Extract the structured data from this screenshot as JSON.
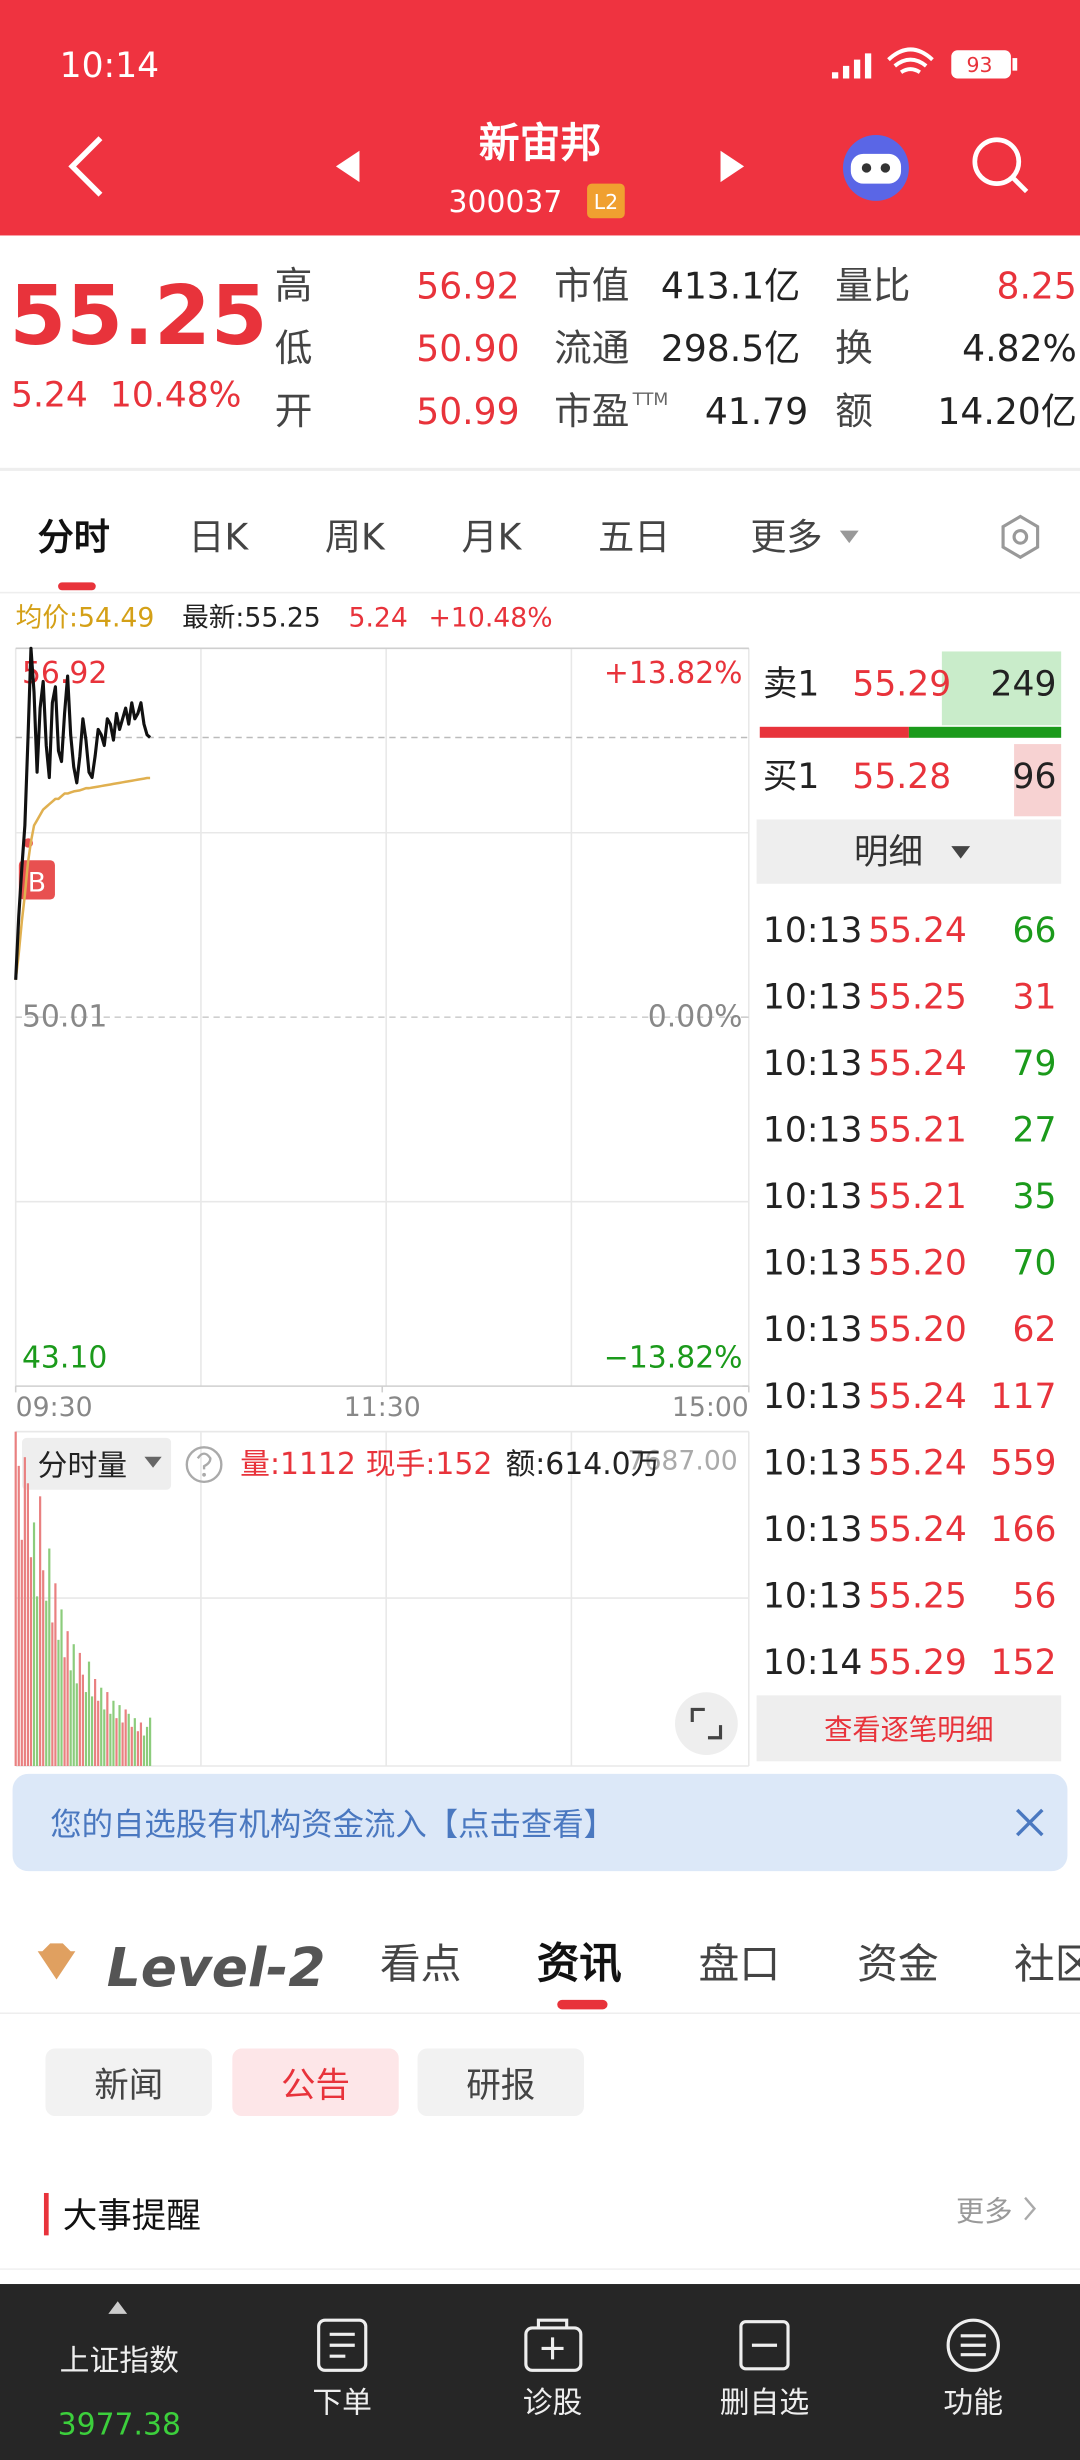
{
  "status_bar": {
    "time": "10:14",
    "battery": "93"
  },
  "header": {
    "name": "新宙邦",
    "code": "300037",
    "badge": "L2"
  },
  "quote": {
    "price": "55.25",
    "change": "5.24",
    "change_pct": "10.48%",
    "columns": [
      [
        {
          "label": "高",
          "value": "56.92",
          "color": "#e8333b"
        },
        {
          "label": "低",
          "value": "50.90",
          "color": "#e8333b"
        },
        {
          "label": "开",
          "value": "50.99",
          "color": "#e8333b"
        }
      ],
      [
        {
          "label": "市值",
          "value": "413.1亿",
          "color": "#222222"
        },
        {
          "label": "流通",
          "value": "298.5亿",
          "color": "#222222"
        },
        {
          "label": "市盈",
          "sup": "TTM",
          "value": "41.79",
          "color": "#222222"
        }
      ],
      [
        {
          "label": "量比",
          "value": "8.25",
          "color": "#e8333b"
        },
        {
          "label": "换",
          "value": "4.82%",
          "color": "#222222"
        },
        {
          "label": "额",
          "value": "14.20亿",
          "color": "#222222"
        }
      ]
    ]
  },
  "chart_tabs": [
    "分时",
    "日K",
    "周K",
    "月K",
    "五日",
    "更多"
  ],
  "info_line": {
    "avg": "均价:54.49",
    "latest": "最新:55.25",
    "change": "5.24",
    "change_pct": "+10.48%"
  },
  "buy_marker": "B",
  "chart_data": [
    {
      "type": "line",
      "xlim": [
        0,
        240
      ],
      "xticks": [
        {
          "value": 0,
          "label": "09:30"
        },
        {
          "value": 120,
          "label": "11:30"
        },
        {
          "value": 240,
          "label": "15:00"
        }
      ],
      "ylim": [
        43.1,
        56.92
      ],
      "yticks": [
        56.92,
        50.01,
        {
          "value": 43.1,
          "label": "43.10"
        }
      ],
      "y2lim": [
        -13.82,
        13.82
      ],
      "y2ticks": [
        {
          "value": 13.82,
          "label": "+13.82%"
        },
        {
          "value": 0,
          "label": "0.00%"
        },
        {
          "value": -13.82,
          "label": "−13.82%"
        }
      ],
      "series": [
        {
          "color": "#111111",
          "values": [
            50.71,
            51.9,
            52.8,
            53.6,
            55.2,
            56.92,
            56.1,
            54.6,
            55.8,
            56.3,
            55.1,
            54.5,
            55.9,
            56.2,
            55.0,
            54.8,
            55.7,
            56.4,
            55.3,
            54.7,
            54.4,
            54.9,
            55.6,
            55.2,
            54.6,
            54.5,
            54.9,
            55.4,
            55.3,
            55.1,
            55.6,
            55.5,
            55.2,
            55.7,
            55.4,
            55.6,
            55.8,
            55.5,
            55.9,
            55.6,
            55.7,
            55.9,
            55.5,
            55.3,
            55.25
          ]
        },
        {
          "color": "#e0b050",
          "values": [
            50.71,
            51.2,
            51.8,
            52.3,
            52.9,
            53.3,
            53.6,
            53.7,
            53.8,
            53.9,
            53.95,
            54.0,
            54.05,
            54.1,
            54.1,
            54.15,
            54.2,
            54.2,
            54.22,
            54.24,
            54.25,
            54.26,
            54.28,
            54.3,
            54.3,
            54.31,
            54.32,
            54.33,
            54.34,
            54.35,
            54.36,
            54.37,
            54.38,
            54.39,
            54.4,
            54.41,
            54.42,
            54.43,
            54.44,
            54.45,
            54.46,
            54.47,
            54.48,
            54.49,
            54.49
          ]
        }
      ]
    },
    {
      "type": "bar",
      "xlim": [
        0,
        240
      ],
      "ylim": [
        0,
        7687
      ],
      "yticks": [
        {
          "value": 7687,
          "label": "7687.00"
        }
      ],
      "values": [
        7687,
        6900,
        5200,
        7100,
        6500,
        4800,
        5600,
        3900,
        6200,
        4500,
        3800,
        5000,
        3300,
        4200,
        2900,
        3600,
        2500,
        3100,
        2200,
        2800,
        1900,
        2600,
        2100,
        1700,
        2400,
        1600,
        2000,
        1500,
        1800,
        1300,
        1700,
        1200,
        1500,
        1100,
        1400,
        1000,
        1300,
        1200,
        900,
        1100,
        800,
        1000,
        700,
        900,
        1112
      ]
    }
  ],
  "volume_header": {
    "selector": "分时量",
    "volume": "量:1112",
    "current": "现手:152",
    "amount": "额:614.0万"
  },
  "order_book": {
    "ask": {
      "label": "卖1",
      "price": "55.29",
      "volume": "249"
    },
    "bid": {
      "label": "买1",
      "price": "55.28",
      "volume": "96"
    },
    "detail_button": "明细"
  },
  "trades": [
    {
      "time": "10:13",
      "price": "55.24",
      "volume": "66",
      "color": "#1b9a1b"
    },
    {
      "time": "10:13",
      "price": "55.25",
      "volume": "31",
      "color": "#e8333b"
    },
    {
      "time": "10:13",
      "price": "55.24",
      "volume": "79",
      "color": "#1b9a1b"
    },
    {
      "time": "10:13",
      "price": "55.21",
      "volume": "27",
      "color": "#1b9a1b"
    },
    {
      "time": "10:13",
      "price": "55.21",
      "volume": "35",
      "color": "#1b9a1b"
    },
    {
      "time": "10:13",
      "price": "55.20",
      "volume": "70",
      "color": "#1b9a1b"
    },
    {
      "time": "10:13",
      "price": "55.20",
      "volume": "62",
      "color": "#e8333b"
    },
    {
      "time": "10:13",
      "price": "55.24",
      "volume": "117",
      "color": "#e8333b"
    },
    {
      "time": "10:13",
      "price": "55.24",
      "volume": "559",
      "color": "#e8333b"
    },
    {
      "time": "10:13",
      "price": "55.24",
      "volume": "166",
      "color": "#e8333b"
    },
    {
      "time": "10:13",
      "price": "55.25",
      "volume": "56",
      "color": "#e8333b"
    },
    {
      "time": "10:14",
      "price": "55.29",
      "volume": "152",
      "color": "#e8333b"
    }
  ],
  "trades_more": "查看逐笔明细",
  "banner": "您的自选股有机构资金流入【点击查看】",
  "section_tabs": {
    "logo": "Level-2",
    "tabs": [
      "看点",
      "资讯",
      "盘口",
      "资金",
      "社区"
    ]
  },
  "sub_tabs": [
    "新闻",
    "公告",
    "研报"
  ],
  "section_title": "大事提醒",
  "more": "更多",
  "bottom_nav": {
    "index_name": "上证指数",
    "index_value": "3977.38",
    "items": [
      "下单",
      "诊股",
      "删自选",
      "功能"
    ]
  }
}
